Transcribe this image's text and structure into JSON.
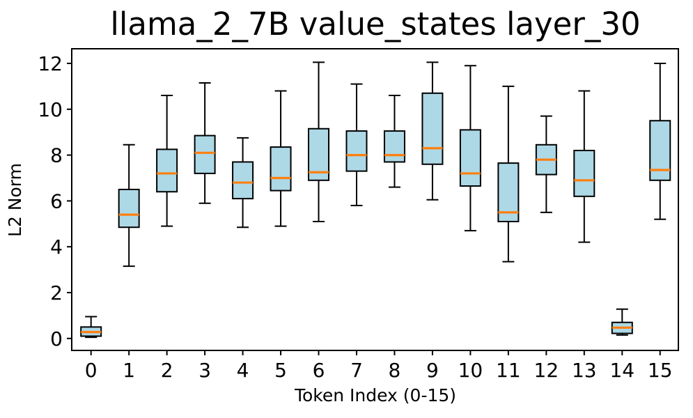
{
  "chart_data": {
    "type": "boxplot",
    "title": "llama_2_7B value_states layer_30",
    "xlabel": "Token Index (0-15)",
    "ylabel": "L2 Norm",
    "categories": [
      "0",
      "1",
      "2",
      "3",
      "4",
      "5",
      "6",
      "7",
      "8",
      "9",
      "10",
      "11",
      "12",
      "13",
      "14",
      "15"
    ],
    "yticks": [
      0,
      2,
      4,
      6,
      8,
      10,
      12
    ],
    "ylim": [
      -0.52,
      12.64
    ],
    "grid": false,
    "legend": "none",
    "box_fill_color": "#add8e6",
    "median_color": "#ff7f0e",
    "edge_color": "#000000",
    "background_color": "#ffffff",
    "boxes": [
      {
        "label": "0",
        "whislo": 0.05,
        "q1": 0.1,
        "med": 0.28,
        "q3": 0.5,
        "whishi": 0.95
      },
      {
        "label": "1",
        "whislo": 3.15,
        "q1": 4.85,
        "med": 5.4,
        "q3": 6.5,
        "whishi": 8.45
      },
      {
        "label": "2",
        "whislo": 4.9,
        "q1": 6.4,
        "med": 7.2,
        "q3": 8.25,
        "whishi": 10.6
      },
      {
        "label": "3",
        "whislo": 5.9,
        "q1": 7.2,
        "med": 8.1,
        "q3": 8.85,
        "whishi": 11.15
      },
      {
        "label": "4",
        "whislo": 4.85,
        "q1": 6.1,
        "med": 6.8,
        "q3": 7.7,
        "whishi": 8.75
      },
      {
        "label": "5",
        "whislo": 4.9,
        "q1": 6.45,
        "med": 7.0,
        "q3": 8.35,
        "whishi": 10.8
      },
      {
        "label": "6",
        "whislo": 5.1,
        "q1": 6.9,
        "med": 7.25,
        "q3": 9.15,
        "whishi": 12.05
      },
      {
        "label": "7",
        "whislo": 5.8,
        "q1": 7.3,
        "med": 8.0,
        "q3": 9.05,
        "whishi": 11.1
      },
      {
        "label": "8",
        "whislo": 6.6,
        "q1": 7.7,
        "med": 8.0,
        "q3": 9.05,
        "whishi": 10.6
      },
      {
        "label": "9",
        "whislo": 6.05,
        "q1": 7.6,
        "med": 8.3,
        "q3": 10.7,
        "whishi": 12.05
      },
      {
        "label": "10",
        "whislo": 4.7,
        "q1": 6.65,
        "med": 7.2,
        "q3": 9.1,
        "whishi": 11.9
      },
      {
        "label": "11",
        "whislo": 3.35,
        "q1": 5.1,
        "med": 5.5,
        "q3": 7.65,
        "whishi": 11.0
      },
      {
        "label": "12",
        "whislo": 5.5,
        "q1": 7.15,
        "med": 7.8,
        "q3": 8.45,
        "whishi": 9.7
      },
      {
        "label": "13",
        "whislo": 4.2,
        "q1": 6.2,
        "med": 6.9,
        "q3": 8.2,
        "whishi": 10.8
      },
      {
        "label": "14",
        "whislo": 0.15,
        "q1": 0.22,
        "med": 0.47,
        "q3": 0.7,
        "whishi": 1.28
      },
      {
        "label": "15",
        "whislo": 5.2,
        "q1": 6.9,
        "med": 7.35,
        "q3": 9.5,
        "whishi": 12.0
      }
    ]
  }
}
